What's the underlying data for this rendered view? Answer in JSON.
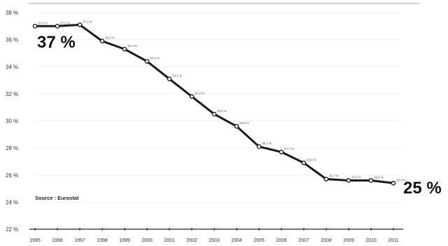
{
  "chart_data": {
    "type": "line",
    "x": [
      "1995",
      "1996",
      "1997",
      "1998",
      "1999",
      "2000",
      "2001",
      "2002",
      "2003",
      "2004",
      "2005",
      "2006",
      "2007",
      "2008",
      "2009",
      "2010",
      "2011"
    ],
    "values": [
      37.0,
      37.0,
      37.1,
      35.9,
      35.3,
      34.4,
      33.1,
      31.8,
      30.5,
      29.6,
      28.1,
      27.7,
      26.9,
      25.7,
      25.6,
      25.6,
      25.4
    ],
    "data_labels": [
      "37,0 %",
      "37,0 %",
      "37,1 %",
      "35,9 %",
      "35,3 %",
      "34,4 %",
      "33,1 %",
      "31,8 %",
      "30,5 %",
      "29,6 %",
      "28,1 %",
      "27,7 %",
      "26,9 %",
      "25,7 %",
      "25,6 %",
      "25,6 %",
      "25,4 %"
    ],
    "ylim": [
      22,
      38
    ],
    "yticks": [
      "22 %",
      "24 %",
      "26 %",
      "28 %",
      "30 %",
      "32 %",
      "34 %",
      "36 %",
      "38 %"
    ],
    "ytick_values": [
      22,
      24,
      26,
      28,
      30,
      32,
      34,
      36,
      38
    ],
    "start_annotation": "37 %",
    "end_annotation": "25 %",
    "source_note": "Source : Eurostat",
    "grid": true,
    "line_color": "#1a1a1a",
    "marker_fill": "#ffffff"
  }
}
